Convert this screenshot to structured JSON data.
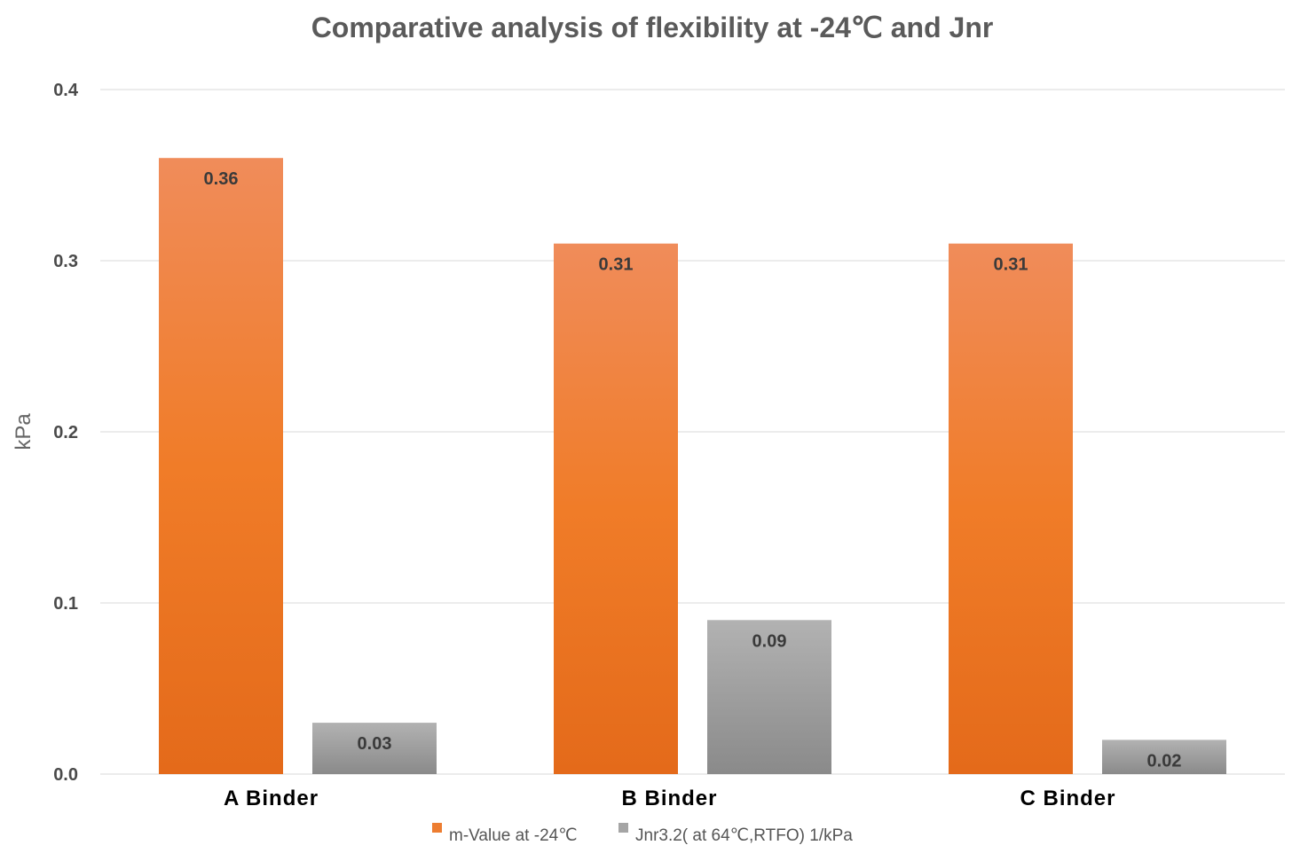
{
  "chart_data": {
    "type": "bar",
    "title": "Comparative analysis of flexibility at -24℃ and Jnr",
    "xlabel": "",
    "ylabel": "kPa",
    "ylim": [
      0,
      0.4
    ],
    "yticks": [
      "0.0",
      "0.1",
      "0.2",
      "0.3",
      "0.4"
    ],
    "ytick_values": [
      0,
      0.1,
      0.2,
      0.3,
      0.4
    ],
    "grid": true,
    "legend_position": "bottom",
    "categories": [
      "A Binder",
      "B Binder",
      "C Binder"
    ],
    "series": [
      {
        "name": "m-Value at -24℃",
        "values": [
          0.36,
          0.31,
          0.31
        ],
        "labels": [
          "0.36",
          "0.31",
          "0.31"
        ],
        "color": "#ed7d31"
      },
      {
        "name": "Jnr3.2( at 64℃,RTFO) 1/kPa",
        "values": [
          0.03,
          0.09,
          0.02
        ],
        "labels": [
          "0.03",
          "0.09",
          "0.02"
        ],
        "color": "#a5a5a5"
      }
    ]
  }
}
